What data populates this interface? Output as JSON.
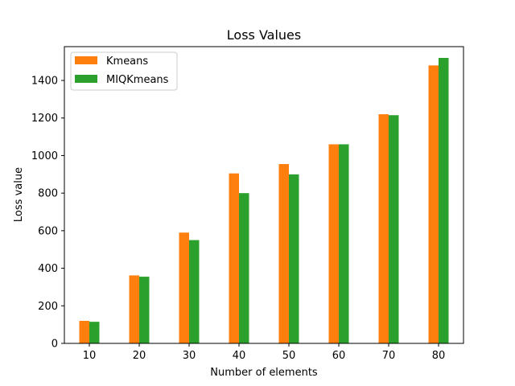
{
  "chart_data": {
    "type": "bar",
    "title": "Loss Values",
    "xlabel": "Number of elements",
    "ylabel": "Loss value",
    "categories": [
      "10",
      "20",
      "30",
      "40",
      "50",
      "60",
      "70",
      "80"
    ],
    "series": [
      {
        "name": "Kmeans",
        "color": "#ff7f0e",
        "values": [
          120,
          362,
          590,
          905,
          955,
          1060,
          1220,
          1480
        ]
      },
      {
        "name": "MIQKmeans",
        "color": "#2ca02c",
        "values": [
          115,
          355,
          550,
          800,
          900,
          1060,
          1215,
          1520
        ]
      }
    ],
    "ylim": [
      0,
      1580
    ],
    "yticks": [
      0,
      200,
      400,
      600,
      800,
      1000,
      1200,
      1400
    ],
    "grid": false,
    "legend_position": "top-left"
  }
}
